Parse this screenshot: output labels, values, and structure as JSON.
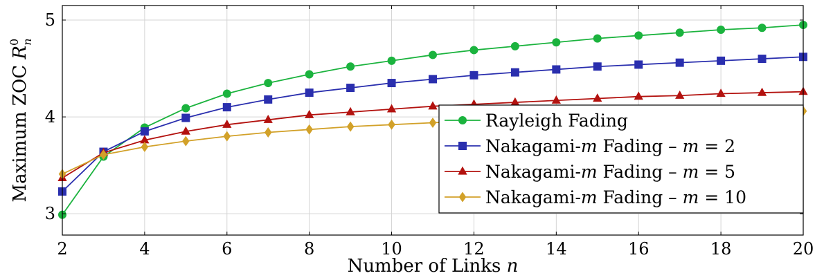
{
  "chart_data": {
    "type": "line",
    "xlabel_text": "Number of Links ",
    "xlabel_var": "n",
    "ylabel_text": "Maximum ZOC ",
    "ylabel_var": "R",
    "ylabel_sub": "n",
    "ylabel_sup": "0",
    "xlim": [
      2,
      20
    ],
    "ylim": [
      2.78,
      5.15
    ],
    "xticks": [
      2,
      4,
      6,
      8,
      10,
      12,
      14,
      16,
      18,
      20
    ],
    "yticks": [
      3,
      4,
      5
    ],
    "grid": true,
    "legend_position": "bottom-right",
    "x": [
      2,
      3,
      4,
      5,
      6,
      7,
      8,
      9,
      10,
      11,
      12,
      13,
      14,
      15,
      16,
      17,
      18,
      19,
      20
    ],
    "series": [
      {
        "name": "Rayleigh Fading",
        "legend_parts": [
          "Rayleigh Fading"
        ],
        "color": "#1bb33e",
        "marker": "circle",
        "values": [
          2.99,
          3.59,
          3.89,
          4.09,
          4.24,
          4.35,
          4.44,
          4.52,
          4.58,
          4.64,
          4.69,
          4.73,
          4.77,
          4.81,
          4.84,
          4.87,
          4.9,
          4.92,
          4.95
        ]
      },
      {
        "name": "Nakagami-m Fading – m = 2",
        "legend_parts": [
          "Nakagami-",
          "m",
          " Fading – ",
          "m",
          " = 2"
        ],
        "color": "#2a2fae",
        "marker": "square",
        "values": [
          3.23,
          3.64,
          3.85,
          3.99,
          4.1,
          4.18,
          4.25,
          4.3,
          4.35,
          4.39,
          4.43,
          4.46,
          4.49,
          4.52,
          4.54,
          4.56,
          4.58,
          4.6,
          4.62
        ]
      },
      {
        "name": "Nakagami-m Fading – m = 5",
        "legend_parts": [
          "Nakagami-",
          "m",
          " Fading – ",
          "m",
          " = 5"
        ],
        "color": "#b3120f",
        "marker": "triangle",
        "values": [
          3.37,
          3.63,
          3.76,
          3.85,
          3.92,
          3.97,
          4.02,
          4.05,
          4.08,
          4.11,
          4.13,
          4.15,
          4.17,
          4.19,
          4.21,
          4.22,
          4.24,
          4.25,
          4.26
        ]
      },
      {
        "name": "Nakagami-m Fading – m = 10",
        "legend_parts": [
          "Nakagami-",
          "m",
          " Fading – ",
          "m",
          " = 10"
        ],
        "color": "#d2a129",
        "marker": "diamond",
        "values": [
          3.41,
          3.61,
          3.69,
          3.75,
          3.8,
          3.84,
          3.87,
          3.9,
          3.92,
          3.94,
          3.96,
          3.98,
          3.99,
          4.01,
          4.02,
          4.03,
          4.04,
          4.05,
          4.06
        ]
      }
    ]
  }
}
